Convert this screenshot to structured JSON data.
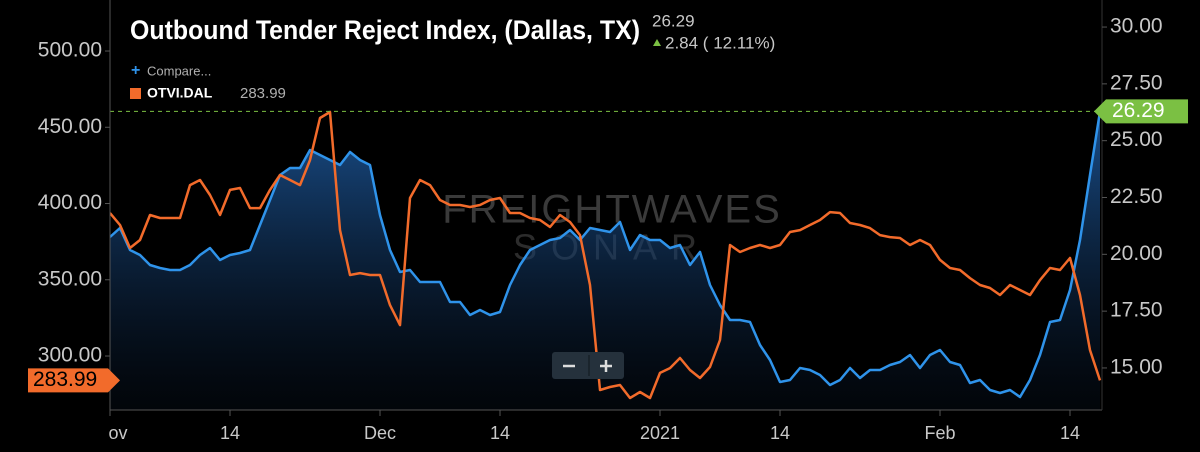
{
  "chart_data": {
    "type": "line",
    "title": "Outbound Tender Reject Index, (Dallas, TX)",
    "last_change": "2.84 ( 12.11%)",
    "watermark": [
      "FREIGHTWAVES",
      "SONAR"
    ],
    "x": [
      0,
      1,
      2,
      3,
      4,
      5,
      6,
      7,
      8,
      9,
      10,
      11,
      12,
      13,
      14,
      15,
      16,
      17,
      18,
      19,
      20,
      21,
      22,
      23,
      24,
      25,
      26,
      27,
      28,
      29,
      30,
      31,
      32,
      33,
      34,
      35,
      36,
      37,
      38,
      39,
      40,
      41,
      42,
      43,
      44,
      45,
      46,
      47,
      48,
      49,
      50,
      51,
      52,
      53,
      54,
      55,
      56,
      57,
      58,
      59,
      60,
      61,
      62,
      63,
      64,
      65,
      66,
      67,
      68,
      69,
      70,
      71,
      72,
      73,
      74,
      75,
      76,
      77,
      78,
      79,
      80,
      81,
      82,
      83,
      84,
      85,
      86,
      87,
      88,
      89,
      90,
      91,
      92,
      93,
      94,
      95,
      96,
      97,
      98,
      99
    ],
    "xlim": [
      0,
      99
    ],
    "xticks": [
      {
        "value": 0,
        "label": "ov"
      },
      {
        "value": 12,
        "label": "14"
      },
      {
        "value": 27,
        "label": "Dec"
      },
      {
        "value": 39,
        "label": "14"
      },
      {
        "value": 55,
        "label": "2021"
      },
      {
        "value": 67,
        "label": "14"
      },
      {
        "value": 83,
        "label": "Feb"
      },
      {
        "value": 96,
        "label": "14"
      }
    ],
    "ylim": [
      264.6,
      526.9
    ],
    "yticks": [
      {
        "value": 300,
        "label": "300.00"
      },
      {
        "value": 350,
        "label": "350.00"
      },
      {
        "value": 400,
        "label": "400.00"
      },
      {
        "value": 450,
        "label": "450.00"
      },
      {
        "value": 500,
        "label": "500.00"
      }
    ],
    "y2lim": [
      13.15,
      30.75
    ],
    "y2ticks": [
      {
        "value": 15,
        "label": "15.00"
      },
      {
        "value": 17.5,
        "label": "17.50"
      },
      {
        "value": 20,
        "label": "20.00"
      },
      {
        "value": 22.5,
        "label": "22.50"
      },
      {
        "value": 25,
        "label": "25.00"
      },
      {
        "value": 27.5,
        "label": "27.50"
      },
      {
        "value": 30,
        "label": "30.00"
      }
    ],
    "grid": false,
    "series": [
      {
        "name": "Compare...",
        "color": "#2f93ea",
        "axis": "y2",
        "values": [
          20.76,
          21.16,
          20.19,
          19.97,
          19.53,
          19.4,
          19.31,
          19.31,
          19.53,
          19.97,
          20.28,
          19.75,
          19.97,
          20.06,
          20.19,
          21.29,
          22.39,
          23.49,
          23.8,
          23.8,
          24.59,
          24.37,
          24.15,
          23.93,
          24.5,
          24.15,
          23.93,
          21.73,
          20.19,
          19.22,
          19.31,
          18.78,
          18.78,
          18.78,
          17.9,
          17.9,
          17.33,
          17.55,
          17.33,
          17.46,
          18.65,
          19.53,
          20.19,
          20.41,
          20.63,
          20.72,
          21.07,
          20.63,
          21.16,
          21.07,
          20.98,
          21.42,
          20.19,
          20.85,
          20.63,
          20.63,
          20.28,
          20.41,
          19.53,
          20.1,
          18.65,
          17.77,
          17.11,
          17.11,
          17.02,
          16.01,
          15.35,
          14.38,
          14.47,
          15.0,
          14.91,
          14.69,
          14.25,
          14.47,
          15.0,
          14.56,
          14.91,
          14.91,
          15.13,
          15.26,
          15.57,
          15.0,
          15.57,
          15.79,
          15.26,
          15.13,
          14.34,
          14.47,
          14.03,
          13.9,
          14.03,
          13.72,
          14.47,
          15.57,
          17.02,
          17.11,
          18.43,
          20.63,
          23.49,
          26.29
        ]
      },
      {
        "name": "OTVI.DAL",
        "color": "#f26b2b",
        "axis": "y",
        "values": [
          393.8,
          385.9,
          370.8,
          376.1,
          392.5,
          390.5,
          390.5,
          390.5,
          412.1,
          415.4,
          405.6,
          392.5,
          408.9,
          410.2,
          397.0,
          397.0,
          408.9,
          418.7,
          415.4,
          412.1,
          428.5,
          456.1,
          460.0,
          382.6,
          353.1,
          354.4,
          353.1,
          353.1,
          333.4,
          320.3,
          403.6,
          415.4,
          412.1,
          402.3,
          399.0,
          399.0,
          397.7,
          399.0,
          402.3,
          403.6,
          393.8,
          393.8,
          390.5,
          389.2,
          384.6,
          392.5,
          387.9,
          379.3,
          346.6,
          277.7,
          279.7,
          281.0,
          272.5,
          276.4,
          272.5,
          288.9,
          292.1,
          298.7,
          290.8,
          285.6,
          292.8,
          310.5,
          372.8,
          368.2,
          370.8,
          372.8,
          370.8,
          372.8,
          381.3,
          382.6,
          385.9,
          389.2,
          394.4,
          393.8,
          387.2,
          385.9,
          383.9,
          379.3,
          378.0,
          377.4,
          372.8,
          376.1,
          372.8,
          363.0,
          357.7,
          356.4,
          351.1,
          346.6,
          344.6,
          340.0,
          346.6,
          343.3,
          340.0,
          349.8,
          357.7,
          356.4,
          364.3,
          340.0,
          303.9,
          283.99
        ]
      }
    ]
  }
}
